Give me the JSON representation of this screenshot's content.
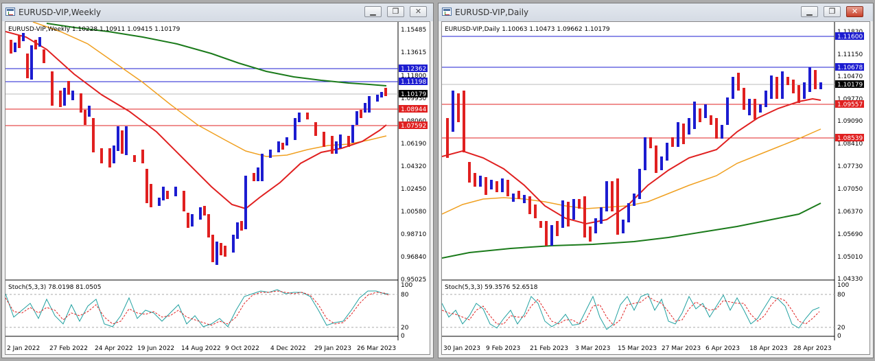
{
  "windows": [
    {
      "title": "EURUSD-VIP,Weekly",
      "price_header": "EURUSD-VIP,Weekly  1.10228 1.10911 1.09415 1.10179",
      "price_ticks": [
        "1.15485",
        "1.13615",
        "1.11800",
        "1.09930",
        "1.08060",
        "1.06190",
        "1.04320",
        "1.02450",
        "1.00580",
        "0.98710",
        "0.96840",
        "0.95025"
      ],
      "price_tags": [
        {
          "label": "1.12362",
          "color": "#1c1cd0"
        },
        {
          "label": "1.11198",
          "color": "#1c1cd0"
        },
        {
          "label": "1.10179",
          "color": "#000000"
        },
        {
          "label": "1.08944",
          "color": "#e02020"
        },
        {
          "label": "1.07592",
          "color": "#e02020"
        }
      ],
      "stoch_header": "Stoch(5,3,3) 78.0198 81.0505",
      "stoch_ticks": [
        "100",
        "80",
        "20",
        "0"
      ],
      "dates": [
        "2 Jan 2022",
        "27 Feb 2022",
        "24 Apr 2022",
        "19 Jun 2022",
        "14 Aug 2022",
        "9 Oct 2022",
        "4 Dec 2022",
        "29 Jan 2023",
        "26 Mar 2023"
      ]
    },
    {
      "title": "EURUSD-VIP,Daily",
      "price_header": "EURUSD-VIP,Daily  1.10063 1.10473 1.09662 1.10179",
      "price_ticks": [
        "1.11830",
        "1.11150",
        "1.10470",
        "1.09770",
        "1.09090",
        "1.08410",
        "1.07730",
        "1.07050",
        "1.06370",
        "1.05690",
        "1.05010",
        "1.04330"
      ],
      "price_tags": [
        {
          "label": "1.11600",
          "color": "#1c1cd0"
        },
        {
          "label": "1.10678",
          "color": "#1c1cd0"
        },
        {
          "label": "1.10179",
          "color": "#000000"
        },
        {
          "label": "1.09557",
          "color": "#e02020"
        },
        {
          "label": "1.08539",
          "color": "#e02020"
        }
      ],
      "stoch_header": "Stoch(5,3,3) 59.3576 52.6518",
      "stoch_ticks": [
        "100",
        "80",
        "20",
        "0"
      ],
      "dates": [
        "30 Jan 2023",
        "9 Feb 2023",
        "21 Feb 2023",
        "3 Mar 2023",
        "15 Mar 2023",
        "27 Mar 2023",
        "6 Apr 2023",
        "18 Apr 2023",
        "28 Apr 2023"
      ]
    }
  ]
}
